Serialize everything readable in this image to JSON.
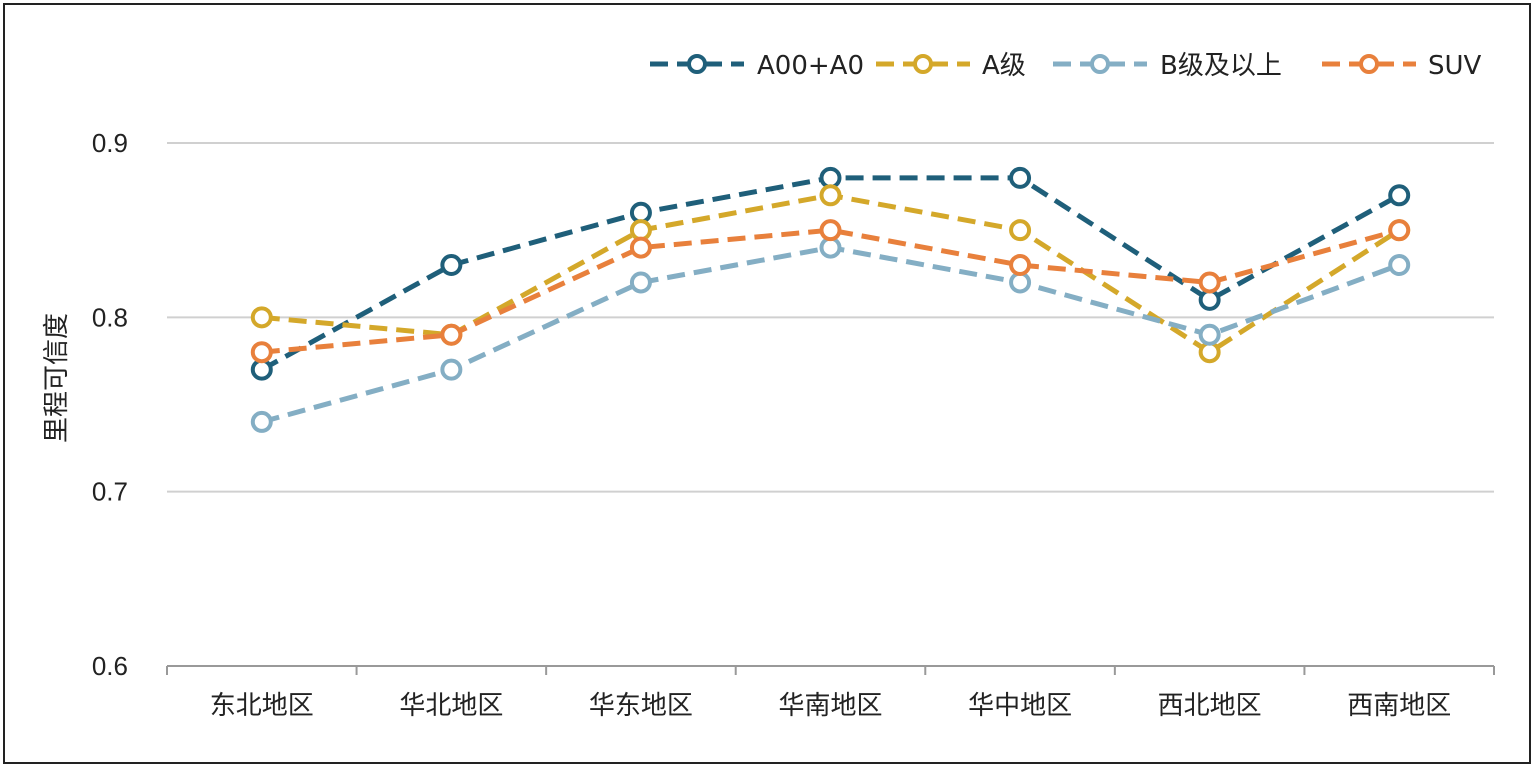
{
  "chart_data": {
    "type": "line",
    "ylabel": "里程可信度",
    "xlabel": "",
    "ylim": [
      0.6,
      0.9
    ],
    "yticks": [
      0.6,
      0.7,
      0.8,
      0.9
    ],
    "ytick_labels": [
      "0.6",
      "0.7",
      "0.8",
      "0.9"
    ],
    "grid": true,
    "legend_position": "top-right",
    "categories": [
      "东北地区",
      "华北地区",
      "华东地区",
      "华南地区",
      "华中地区",
      "西北地区",
      "西南地区"
    ],
    "series": [
      {
        "name": "A00+A0",
        "color": "#1f5f7a",
        "values": [
          0.77,
          0.83,
          0.86,
          0.88,
          0.88,
          0.81,
          0.87
        ]
      },
      {
        "name": "A级",
        "color": "#d4a82a",
        "values": [
          0.8,
          0.79,
          0.85,
          0.87,
          0.85,
          0.78,
          0.85
        ]
      },
      {
        "name": "B级及以上",
        "color": "#84aec4",
        "values": [
          0.74,
          0.77,
          0.82,
          0.84,
          0.82,
          0.79,
          0.83
        ]
      },
      {
        "name": "SUV",
        "color": "#e8803c",
        "values": [
          0.78,
          0.79,
          0.84,
          0.85,
          0.83,
          0.82,
          0.85
        ]
      }
    ]
  }
}
